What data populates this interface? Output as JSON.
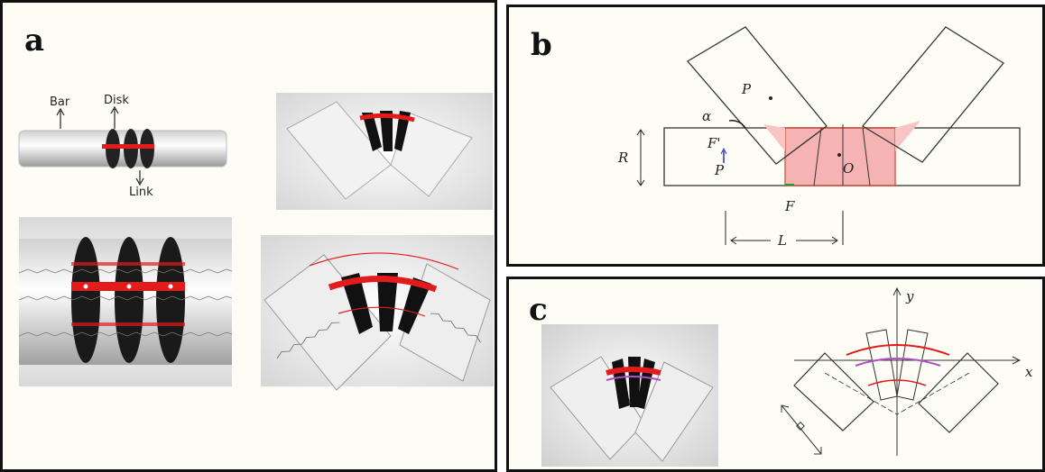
{
  "panels": {
    "a": {
      "label": "a",
      "annotations": {
        "bar": "Bar",
        "disk": "Disk",
        "link": "Link"
      }
    },
    "b": {
      "label": "b",
      "symbols": {
        "p_star": "P",
        "alpha": "α",
        "f_prime": "F'",
        "r": "R",
        "p": "P",
        "o": "O",
        "f": "F",
        "l": "L"
      }
    },
    "c": {
      "label": "c",
      "axes": {
        "y": "y",
        "x": "x"
      }
    }
  },
  "colors": {
    "red": "#e31b1b",
    "pink": "#f4a8a8",
    "purple": "#b04fc8",
    "frame": "#111111"
  }
}
